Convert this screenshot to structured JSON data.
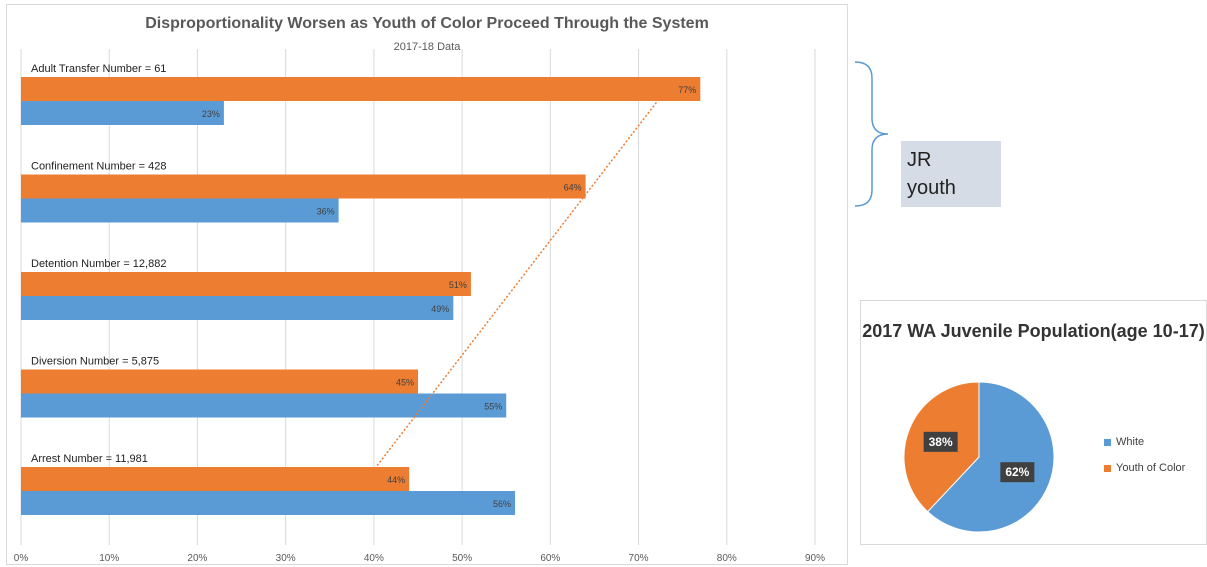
{
  "chart_data": [
    {
      "type": "bar",
      "orientation": "horizontal",
      "title": "Disproportionality Worsen as Youth of Color Proceed Through the System",
      "subtitle": "2017-18 Data",
      "categories": [
        "Adult Transfer Number = 61",
        "Confinement Number = 428",
        "Detention Number = 12,882",
        "Diversion Number = 5,875",
        "Arrest Number = 11,981"
      ],
      "series": [
        {
          "color": "#ed7d31",
          "values": [
            77,
            64,
            51,
            45,
            44
          ],
          "labels": [
            "77%",
            "64%",
            "51%",
            "45%",
            "44%"
          ]
        },
        {
          "color": "#5b9bd5",
          "values": [
            23,
            36,
            49,
            55,
            56
          ],
          "labels": [
            "23%",
            "36%",
            "49%",
            "55%",
            "56%"
          ]
        }
      ],
      "xlim": [
        0,
        90
      ],
      "x_ticks": [
        "0%",
        "10%",
        "20%",
        "30%",
        "40%",
        "50%",
        "60%",
        "70%",
        "80%",
        "90%"
      ],
      "grid": true,
      "trendline": {
        "series": "orange",
        "style": "dotted",
        "color": "#ed7d31"
      }
    },
    {
      "type": "pie",
      "title": "2017 WA Juvenile Population(age 10-17)",
      "slices": [
        {
          "name": "White",
          "value": 62,
          "label": "62%",
          "color": "#5b9bd5"
        },
        {
          "name": "Youth of Color",
          "value": 38,
          "label": "38%",
          "color": "#ed7d31"
        }
      ],
      "legend": "right"
    }
  ],
  "annotation": {
    "label": "JR\nyouth",
    "bracket_color": "#5b9bd5",
    "box_color": "#d6dce5"
  }
}
